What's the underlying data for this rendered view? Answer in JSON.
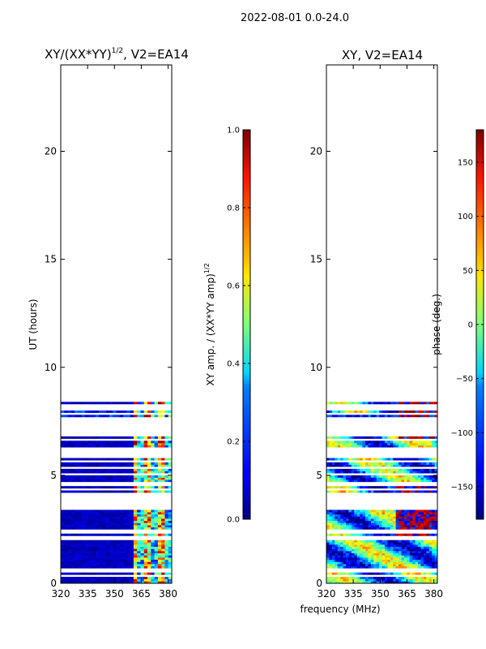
{
  "suptitle": "2022-08-01 0.0-24.0",
  "xlabel_shared": "frequency (MHz)",
  "colors": {
    "masked_row": "#ffffff",
    "background_low": "#00008b"
  },
  "chart_data": [
    {
      "type": "heatmap",
      "title": "XY/(XX*YY)",
      "title_sup": "1/2",
      "title_suffix": ", V2=EA14",
      "xlabel": "",
      "ylabel": "UT (hours)",
      "xlim": [
        320,
        382
      ],
      "ylim": [
        0,
        24
      ],
      "xticks": [
        320,
        335,
        350,
        365,
        380
      ],
      "yticks": [
        0,
        5,
        10,
        15,
        20
      ],
      "colormap": "jet",
      "data_extent_hours": [
        0,
        8.4
      ],
      "bright_band_mhz": [
        360,
        382
      ],
      "colorbar": {
        "label": "XY amp. / (XX*YY amp)",
        "label_sup": "1/2",
        "range": [
          0.0,
          1.0
        ],
        "ticks": [
          0.0,
          0.2,
          0.4,
          0.6,
          0.8,
          1.0
        ],
        "tick_labels": [
          "0.0",
          "0.2",
          "0.4",
          "0.6",
          "0.8",
          "1.0"
        ]
      }
    },
    {
      "type": "heatmap",
      "title": "XY, V2=EA14",
      "xlabel": "frequency (MHz)",
      "ylabel": "",
      "xlim": [
        320,
        382
      ],
      "ylim": [
        0,
        24
      ],
      "xticks": [
        320,
        335,
        350,
        365,
        380
      ],
      "yticks": [
        0,
        5,
        10,
        15,
        20
      ],
      "colormap": "jet",
      "data_extent_hours": [
        0,
        8.4
      ],
      "colorbar": {
        "label": "phase (deg.)",
        "range": [
          -180,
          180
        ],
        "ticks": [
          -150,
          -100,
          -50,
          0,
          50,
          100,
          150
        ],
        "tick_labels": [
          "−150",
          "−100",
          "−50",
          "0",
          "50",
          "100",
          "150"
        ]
      }
    }
  ]
}
